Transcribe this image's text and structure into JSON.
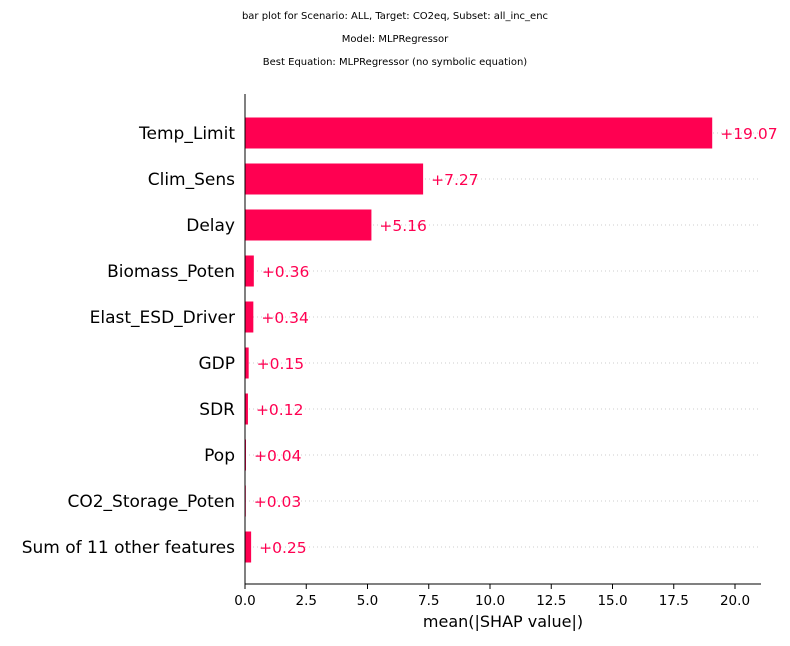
{
  "chart_data": {
    "type": "bar",
    "orientation": "horizontal",
    "title_lines": [
      "bar plot for Scenario: ALL, Target: CO2eq, Subset: all_inc_enc",
      "Model: MLPRegressor",
      "Best Equation: MLPRegressor (no symbolic equation)"
    ],
    "categories": [
      "Temp_Limit",
      "Clim_Sens",
      "Delay",
      "Biomass_Poten",
      "Elast_ESD_Driver",
      "GDP",
      "SDR",
      "Pop",
      "CO2_Storage_Poten",
      "Sum of 11 other features"
    ],
    "values": [
      19.07,
      7.27,
      5.16,
      0.36,
      0.34,
      0.15,
      0.12,
      0.04,
      0.03,
      0.25
    ],
    "value_labels": [
      "+19.07",
      "+7.27",
      "+5.16",
      "+0.36",
      "+0.34",
      "+0.15",
      "+0.12",
      "+0.04",
      "+0.03",
      "+0.25"
    ],
    "xlabel": "mean(|SHAP value|)",
    "xlim": [
      0,
      21
    ],
    "xticks": [
      0,
      2.5,
      5,
      7.5,
      10,
      12.5,
      15,
      17.5,
      20
    ],
    "xtick_labels": [
      "0.0",
      "2.5",
      "5.0",
      "7.5",
      "10.0",
      "12.5",
      "15.0",
      "17.5",
      "20.0"
    ],
    "bar_color": "#ff0051",
    "grid": "dotted horizontal guide lines per row"
  }
}
